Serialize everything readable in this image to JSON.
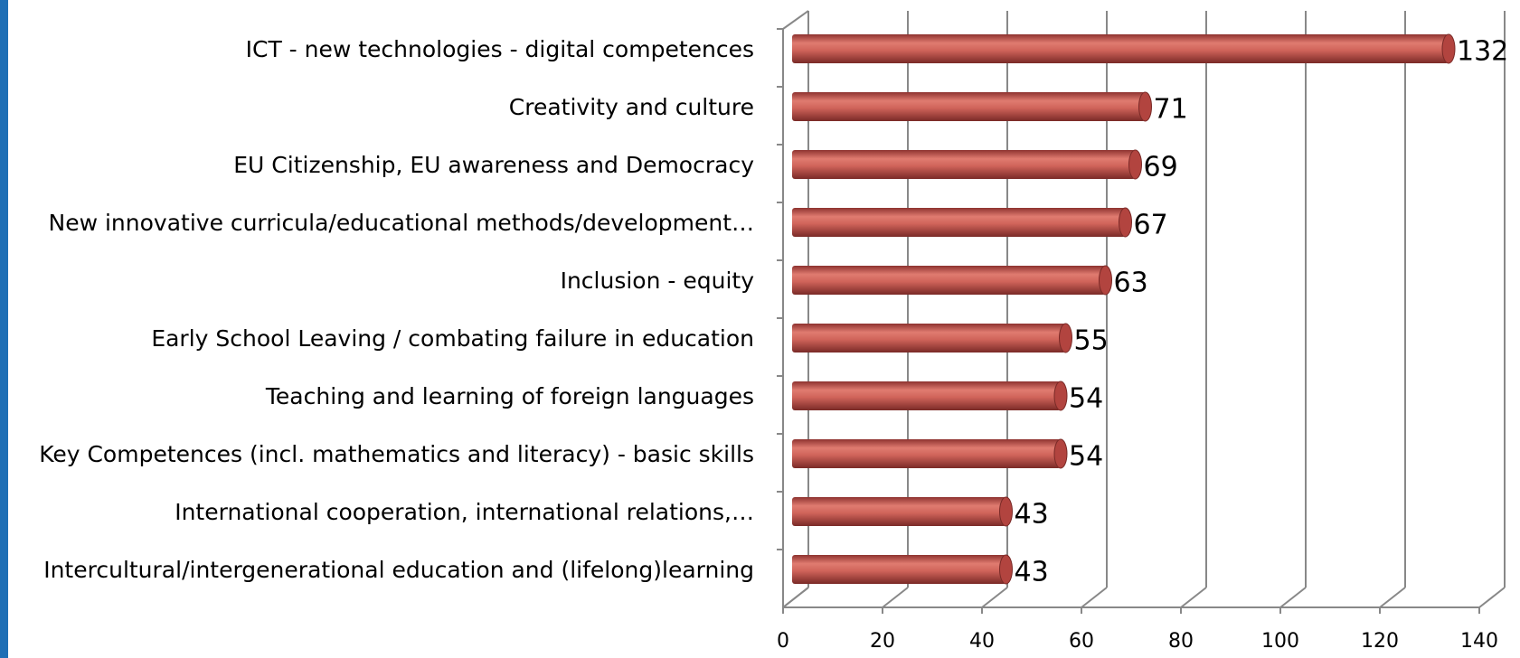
{
  "chart_data": {
    "type": "bar",
    "orientation": "horizontal",
    "categories": [
      "ICT - new technologies - digital competences",
      "Creativity and culture",
      "EU Citizenship, EU awareness and Democracy",
      "New innovative curricula/educational methods/development…",
      "Inclusion - equity",
      "Early School Leaving / combating failure in education",
      "Teaching and learning of foreign languages",
      "Key Competences (incl. mathematics and literacy) - basic skills",
      "International cooperation, international relations,…",
      "Intercultural/intergenerational education and (lifelong)learning"
    ],
    "values": [
      132,
      71,
      69,
      67,
      63,
      55,
      54,
      54,
      43,
      43
    ],
    "color": "#c0504d",
    "xlim": [
      0,
      140
    ],
    "xticks": [
      0,
      20,
      40,
      60,
      80,
      100,
      120,
      140
    ],
    "grid": true
  }
}
